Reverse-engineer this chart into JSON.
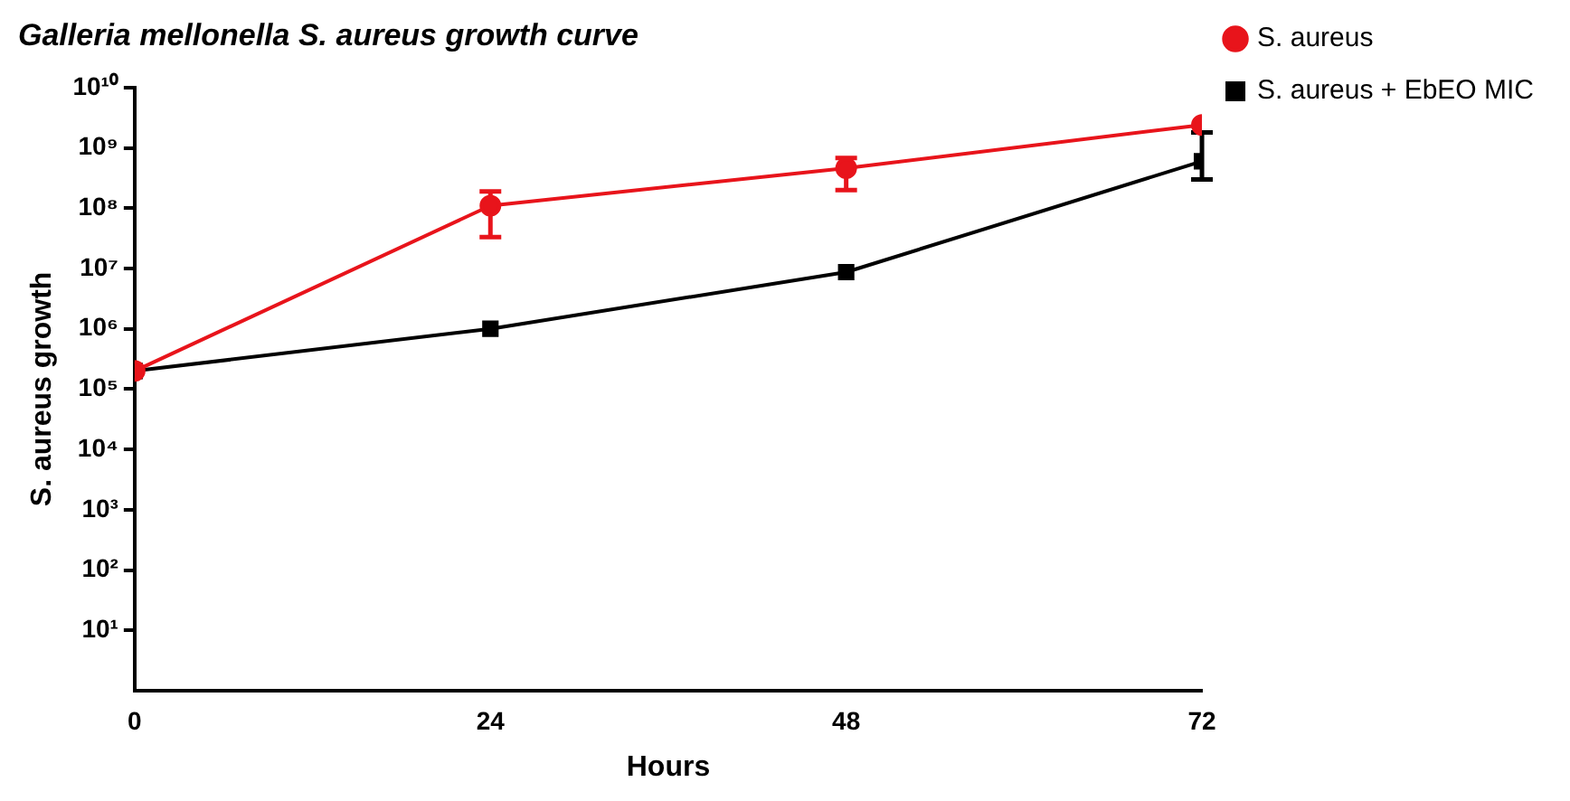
{
  "chart_data": {
    "type": "line",
    "title": "Galleria mellonella S. aureus growth curve",
    "xlabel": "Hours",
    "ylabel": "S. aureus growth",
    "x": [
      0,
      24,
      48,
      72
    ],
    "xlim": [
      0,
      72
    ],
    "xticks": [
      0,
      24,
      48,
      72
    ],
    "ylim": [
      1,
      10000000000
    ],
    "log": "y",
    "yticks": [
      {
        "value": 10,
        "label": "10¹"
      },
      {
        "value": 100,
        "label": "10²"
      },
      {
        "value": 1000,
        "label": "10³"
      },
      {
        "value": 10000,
        "label": "10⁴"
      },
      {
        "value": 100000,
        "label": "10⁵"
      },
      {
        "value": 1000000,
        "label": "10⁶"
      },
      {
        "value": 10000000,
        "label": "10⁷"
      },
      {
        "value": 100000000,
        "label": "10⁸"
      },
      {
        "value": 1000000000,
        "label": "10⁹"
      },
      {
        "value": 10000000000,
        "label": "10¹⁰"
      }
    ],
    "grid": false,
    "legend": "top right",
    "series": [
      {
        "name": "S. aureus",
        "color": "#e8141b",
        "marker": "circle",
        "values": [
          200000,
          110000000,
          460000000,
          2400000000
        ],
        "errors": [
          null,
          [
            33000000,
            190000000
          ],
          [
            200000000,
            680000000
          ],
          null
        ]
      },
      {
        "name": "S. aureus + EbEO MIC",
        "color": "#000000",
        "marker": "square",
        "values": [
          200000,
          1000000,
          8700000,
          600000000
        ],
        "errors": [
          null,
          null,
          null,
          [
            300000000,
            1800000000
          ]
        ]
      }
    ]
  }
}
